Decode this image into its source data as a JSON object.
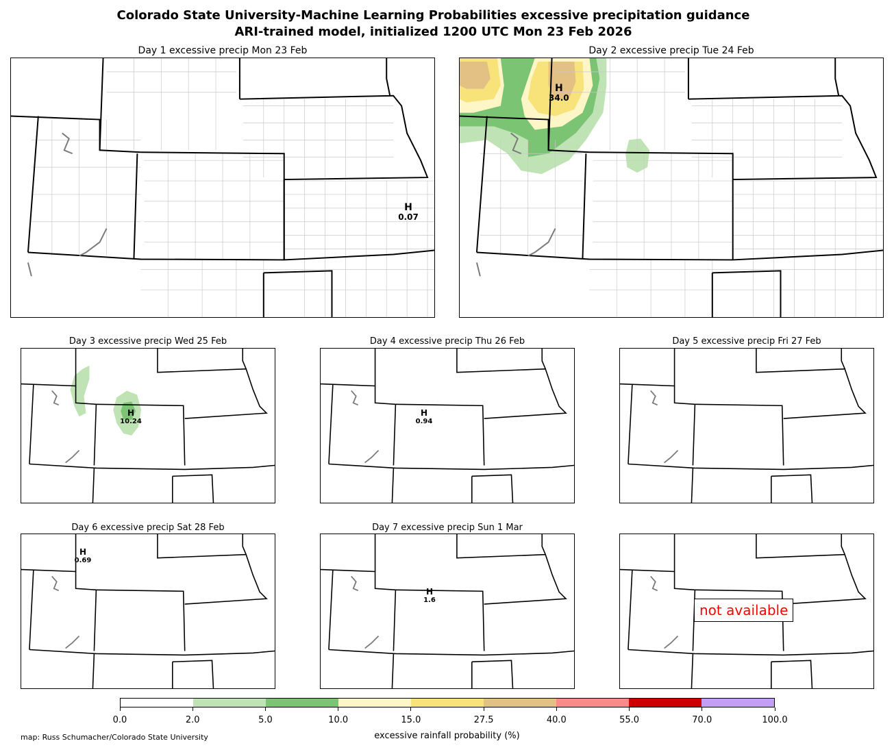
{
  "title_line1": "Colorado State University-Machine Learning Probabilities excessive precipitation guidance",
  "title_line2": "ARI-trained model, initialized 1200 UTC Mon 23 Feb 2026",
  "panels": [
    {
      "title": "Day 1 excessive precip  Mon 23 Feb",
      "h_mark": "H",
      "h_value": "0.07"
    },
    {
      "title": "Day 2 excessive precip  Tue 24 Feb",
      "h_mark": "H",
      "h_value": "34.0"
    },
    {
      "title": "Day 3 excessive precip  Wed 25 Feb",
      "h_mark": "H",
      "h_value": "10.24"
    },
    {
      "title": "Day 4 excessive precip  Thu 26 Feb",
      "h_mark": "H",
      "h_value": "0.94"
    },
    {
      "title": "Day 5 excessive precip  Fri 27 Feb"
    },
    {
      "title": "Day 6 excessive precip  Sat 28 Feb",
      "h_mark": "H",
      "h_value": "0.69"
    },
    {
      "title": "Day 7 excessive precip  Sun 1 Mar",
      "h_mark": "H",
      "h_value": "1.6"
    },
    {
      "title": "",
      "status": "not available"
    }
  ],
  "colorbar": {
    "label": "excessive rainfall probability (%)",
    "ticks": [
      "0.0",
      "2.0",
      "5.0",
      "10.0",
      "15.0",
      "27.5",
      "40.0",
      "55.0",
      "70.0",
      "100.0"
    ],
    "colors": [
      "#ffffff",
      "#bfe3b4",
      "#7bc474",
      "#fff6c8",
      "#f8e27a",
      "#e3c184",
      "#f98a8a",
      "#cc0000",
      "#c29ef5"
    ]
  },
  "credit": "map: Russ Schumacher/Colorado State University"
}
